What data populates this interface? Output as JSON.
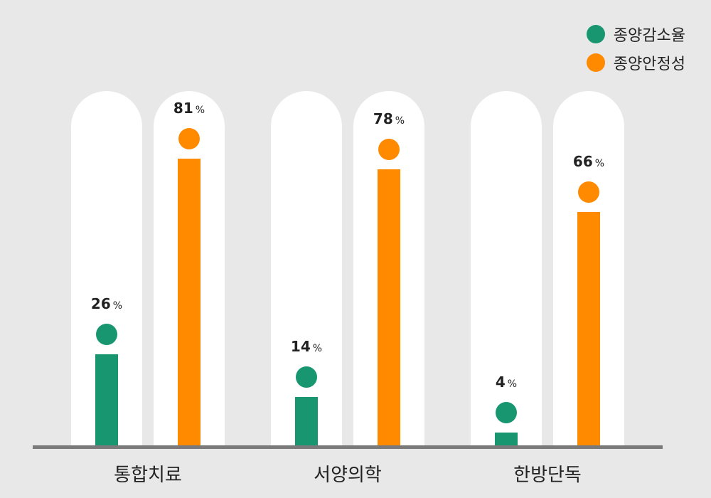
{
  "chart_data": {
    "type": "bar",
    "categories": [
      "통합치료",
      "서양의학",
      "한방단독"
    ],
    "series": [
      {
        "name": "종양감소율",
        "values": [
          26,
          14,
          4
        ],
        "color": "#179670"
      },
      {
        "name": "종양안정성",
        "values": [
          81,
          78,
          66
        ],
        "color": "#ff8a00"
      }
    ],
    "value_unit": "%",
    "ylim": [
      0,
      100
    ],
    "grid": false,
    "legend": "top-right"
  },
  "colors": {
    "background": "#e8e8e8",
    "pill": "#ffffff",
    "axis": "#7a7a7a",
    "text": "#222222"
  }
}
